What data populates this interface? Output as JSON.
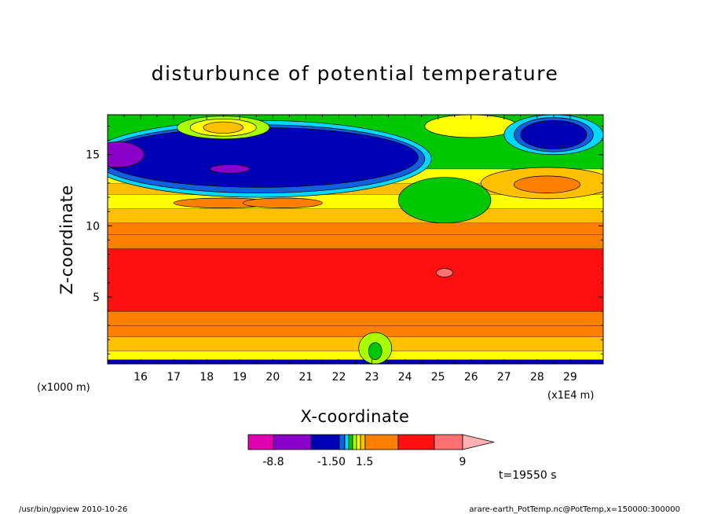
{
  "chart_data": {
    "type": "heatmap",
    "title": "disturbunce of potential temperature",
    "xlabel": "X-coordinate",
    "ylabel": "Z-coordinate",
    "x_units": "(x1E4 m)",
    "y_units": "(x1000 m)",
    "xlim": [
      15.0,
      30.0
    ],
    "ylim": [
      0.3,
      17.8
    ],
    "x_ticks": [
      16,
      17,
      18,
      19,
      20,
      21,
      22,
      23,
      24,
      25,
      26,
      27,
      28,
      29
    ],
    "y_ticks": [
      5,
      10,
      15
    ],
    "colorbar": {
      "level_labels": [
        "-8.8",
        "-1.50",
        "1.5",
        "9"
      ],
      "colors": [
        "#e000b0",
        "#8a00c8",
        "#0000b4",
        "#1060e0",
        "#00d8ff",
        "#00c800",
        "#a8ff00",
        "#ffff00",
        "#ffc000",
        "#ff8000",
        "#ff1010",
        "#ff7070",
        "#ffb0b0"
      ]
    },
    "annotation": "t=19550 s",
    "bands": [
      {
        "z0": 0.3,
        "z1": 0.6,
        "color": "#0000b4"
      },
      {
        "z0": 0.6,
        "z1": 1.2,
        "color": "#ffff00"
      },
      {
        "z0": 1.2,
        "z1": 2.2,
        "color": "#ffc000"
      },
      {
        "z0": 2.2,
        "z1": 3.0,
        "color": "#ff8000"
      },
      {
        "z0": 3.0,
        "z1": 4.0,
        "color": "#ff8000"
      },
      {
        "z0": 4.0,
        "z1": 8.4,
        "color": "#ff1010"
      },
      {
        "z0": 8.4,
        "z1": 9.4,
        "color": "#ff8000"
      },
      {
        "z0": 9.4,
        "z1": 10.2,
        "color": "#ff8000"
      },
      {
        "z0": 10.2,
        "z1": 11.2,
        "color": "#ffc000"
      },
      {
        "z0": 11.2,
        "z1": 12.2,
        "color": "#ffff00"
      },
      {
        "z0": 12.2,
        "z1": 13.0,
        "color": "#ffc000"
      },
      {
        "z0": 13.0,
        "z1": 14.0,
        "color": "#ffff00"
      },
      {
        "z0": 14.0,
        "z1": 17.8,
        "color": "#00c800"
      }
    ],
    "features": [
      {
        "cx": 19.6,
        "cz": 14.7,
        "rx": 5.2,
        "rz": 2.7,
        "color": "#00d8ff"
      },
      {
        "cx": 19.6,
        "cz": 14.7,
        "rx": 5.0,
        "rz": 2.4,
        "color": "#1060e0"
      },
      {
        "cx": 19.6,
        "cz": 14.8,
        "rx": 4.8,
        "rz": 2.1,
        "color": "#0000b4"
      },
      {
        "cx": 15.3,
        "cz": 15.0,
        "rx": 0.8,
        "rz": 0.9,
        "color": "#8a00c8"
      },
      {
        "cx": 18.7,
        "cz": 14.0,
        "rx": 0.6,
        "rz": 0.3,
        "color": "#8a00c8"
      },
      {
        "cx": 18.5,
        "cz": 16.9,
        "rx": 1.4,
        "rz": 0.8,
        "color": "#a8ff00"
      },
      {
        "cx": 18.5,
        "cz": 16.9,
        "rx": 1.0,
        "rz": 0.6,
        "color": "#ffff00"
      },
      {
        "cx": 18.5,
        "cz": 16.9,
        "rx": 0.6,
        "rz": 0.4,
        "color": "#ffc000"
      },
      {
        "cx": 26.0,
        "cz": 17.0,
        "rx": 1.4,
        "rz": 0.8,
        "color": "#ffff00"
      },
      {
        "cx": 25.2,
        "cz": 11.8,
        "rx": 1.4,
        "rz": 1.6,
        "color": "#00c800"
      },
      {
        "cx": 28.3,
        "cz": 13.0,
        "rx": 2.0,
        "rz": 1.1,
        "color": "#ffc000"
      },
      {
        "cx": 28.3,
        "cz": 12.9,
        "rx": 1.0,
        "rz": 0.6,
        "color": "#ff8000"
      },
      {
        "cx": 28.5,
        "cz": 16.4,
        "rx": 1.5,
        "rz": 1.4,
        "color": "#00d8ff"
      },
      {
        "cx": 28.5,
        "cz": 16.4,
        "rx": 1.2,
        "rz": 1.2,
        "color": "#1060e0"
      },
      {
        "cx": 28.5,
        "cz": 16.4,
        "rx": 1.0,
        "rz": 1.0,
        "color": "#0000b4"
      },
      {
        "cx": 18.5,
        "cz": 11.6,
        "rx": 1.5,
        "rz": 0.35,
        "color": "#ff8000"
      },
      {
        "cx": 20.3,
        "cz": 11.6,
        "rx": 1.2,
        "rz": 0.35,
        "color": "#ff8000"
      },
      {
        "cx": 25.2,
        "cz": 6.7,
        "rx": 0.25,
        "rz": 0.3,
        "color": "#ff7070"
      },
      {
        "cx": 23.1,
        "cz": 1.4,
        "rx": 0.5,
        "rz": 1.1,
        "color": "#a8ff00"
      },
      {
        "cx": 23.1,
        "cz": 1.2,
        "rx": 0.2,
        "rz": 0.6,
        "color": "#00c800"
      }
    ]
  },
  "footer": {
    "left": "/usr/bin/gpview   2010-10-26",
    "right": "arare-earth_PotTemp.nc@PotTemp,x=150000:300000"
  }
}
